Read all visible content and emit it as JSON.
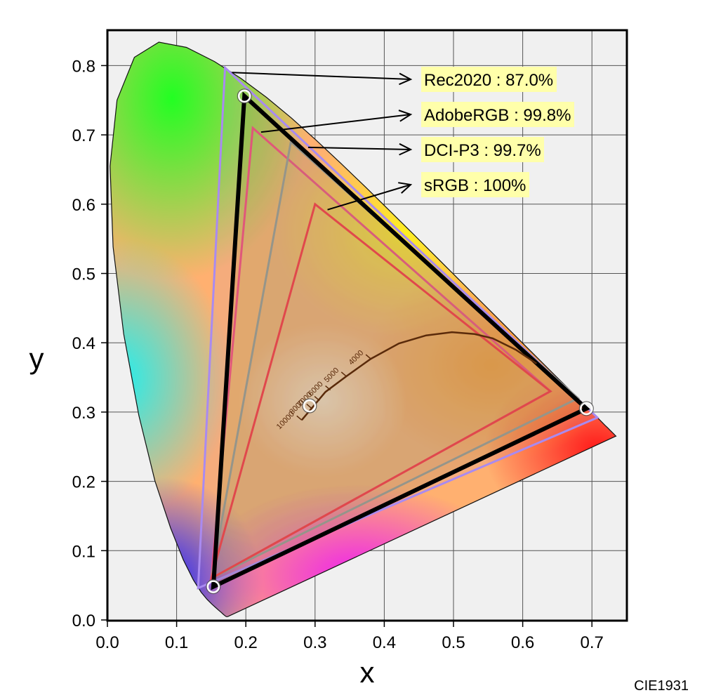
{
  "chart_data": {
    "type": "scatter",
    "title": "",
    "xlabel": "x",
    "ylabel": "y",
    "xlim": [
      0.0,
      0.75
    ],
    "ylim": [
      0.0,
      0.85
    ],
    "xticks": [
      "0.0",
      "0.1",
      "0.2",
      "0.3",
      "0.4",
      "0.5",
      "0.6",
      "0.7"
    ],
    "yticks": [
      "0.0",
      "0.1",
      "0.2",
      "0.3",
      "0.4",
      "0.5",
      "0.6",
      "0.7",
      "0.8"
    ],
    "grid": true,
    "corner_label": "CIE1931",
    "spectral_locus": [
      [
        0.1741,
        0.005
      ],
      [
        0.1738,
        0.0049
      ],
      [
        0.1736,
        0.0049
      ],
      [
        0.1733,
        0.0048
      ],
      [
        0.173,
        0.0048
      ],
      [
        0.1726,
        0.0048
      ],
      [
        0.1721,
        0.0048
      ],
      [
        0.1714,
        0.0051
      ],
      [
        0.1703,
        0.0058
      ],
      [
        0.1689,
        0.0069
      ],
      [
        0.1669,
        0.0086
      ],
      [
        0.1644,
        0.0109
      ],
      [
        0.1611,
        0.0138
      ],
      [
        0.1566,
        0.0177
      ],
      [
        0.151,
        0.0227
      ],
      [
        0.144,
        0.0297
      ],
      [
        0.1355,
        0.0399
      ],
      [
        0.1241,
        0.0578
      ],
      [
        0.1096,
        0.0868
      ],
      [
        0.0913,
        0.1327
      ],
      [
        0.0687,
        0.2007
      ],
      [
        0.0454,
        0.295
      ],
      [
        0.0235,
        0.4127
      ],
      [
        0.0082,
        0.5384
      ],
      [
        0.0039,
        0.6548
      ],
      [
        0.0139,
        0.7502
      ],
      [
        0.0389,
        0.812
      ],
      [
        0.0743,
        0.8338
      ],
      [
        0.1142,
        0.8262
      ],
      [
        0.1547,
        0.8059
      ],
      [
        0.1929,
        0.7816
      ],
      [
        0.2296,
        0.7543
      ],
      [
        0.2658,
        0.7243
      ],
      [
        0.3016,
        0.6923
      ],
      [
        0.3373,
        0.6589
      ],
      [
        0.3731,
        0.6245
      ],
      [
        0.4087,
        0.5896
      ],
      [
        0.4441,
        0.5547
      ],
      [
        0.4788,
        0.5202
      ],
      [
        0.5125,
        0.4866
      ],
      [
        0.5448,
        0.4544
      ],
      [
        0.5752,
        0.4242
      ],
      [
        0.6029,
        0.3965
      ],
      [
        0.627,
        0.3725
      ],
      [
        0.6482,
        0.3514
      ],
      [
        0.6658,
        0.334
      ],
      [
        0.6801,
        0.3197
      ],
      [
        0.6915,
        0.3083
      ],
      [
        0.7006,
        0.2993
      ],
      [
        0.7079,
        0.292
      ],
      [
        0.714,
        0.2859
      ],
      [
        0.719,
        0.2809
      ],
      [
        0.723,
        0.277
      ],
      [
        0.726,
        0.274
      ],
      [
        0.7283,
        0.2717
      ],
      [
        0.73,
        0.27
      ],
      [
        0.7311,
        0.2689
      ],
      [
        0.732,
        0.268
      ],
      [
        0.7327,
        0.2673
      ],
      [
        0.7334,
        0.2666
      ],
      [
        0.734,
        0.266
      ],
      [
        0.7344,
        0.2656
      ],
      [
        0.7347,
        0.2653
      ]
    ],
    "gamuts": [
      {
        "name": "Rec2020",
        "coverage": "87.0%",
        "label": "Rec2020 : 87.0%",
        "color": "#a98af0",
        "width": 3,
        "points": [
          [
            0.708,
            0.292
          ],
          [
            0.17,
            0.797
          ],
          [
            0.131,
            0.046
          ]
        ]
      },
      {
        "name": "AdobeRGB",
        "coverage": "99.8%",
        "label": "AdobeRGB : 99.8%",
        "color": "#ee5588",
        "width": 3,
        "points": [
          [
            0.64,
            0.33
          ],
          [
            0.21,
            0.71
          ],
          [
            0.15,
            0.06
          ]
        ]
      },
      {
        "name": "DCI-P3",
        "coverage": "99.7%",
        "label": "DCI-P3 : 99.7%",
        "color": "#9a9a9a",
        "width": 3,
        "points": [
          [
            0.68,
            0.32
          ],
          [
            0.265,
            0.69
          ],
          [
            0.15,
            0.06
          ]
        ]
      },
      {
        "name": "sRGB",
        "coverage": "100%",
        "label": "sRGB : 100%",
        "color": "#ee4455",
        "width": 3,
        "points": [
          [
            0.64,
            0.33
          ],
          [
            0.3,
            0.6
          ],
          [
            0.15,
            0.06
          ]
        ]
      }
    ],
    "display_gamut": {
      "points": [
        [
          0.692,
          0.305
        ],
        [
          0.198,
          0.756
        ],
        [
          0.153,
          0.048
        ]
      ],
      "color": "#000000",
      "width": 6
    },
    "white_point": [
      0.292,
      0.309
    ],
    "planckian": {
      "points": [
        [
          0.2807,
          0.2884
        ],
        [
          0.295,
          0.3054
        ],
        [
          0.315,
          0.3291
        ],
        [
          0.3451,
          0.3516
        ],
        [
          0.3805,
          0.3768
        ],
        [
          0.4212,
          0.399
        ],
        [
          0.4604,
          0.4106
        ],
        [
          0.4978,
          0.4153
        ],
        [
          0.5304,
          0.4126
        ],
        [
          0.5567,
          0.4064
        ],
        [
          0.59,
          0.39
        ],
        [
          0.62,
          0.37
        ]
      ],
      "ticks": [
        {
          "label": "10000",
          "x": 0.2807,
          "y": 0.2884
        },
        {
          "label": "8000",
          "x": 0.295,
          "y": 0.3054
        },
        {
          "label": "7000",
          "x": 0.3064,
          "y": 0.3166
        },
        {
          "label": "6000",
          "x": 0.3221,
          "y": 0.3318
        },
        {
          "label": "5000",
          "x": 0.3451,
          "y": 0.3516
        },
        {
          "label": "4000",
          "x": 0.3805,
          "y": 0.3768
        }
      ]
    },
    "annotations": [
      {
        "label": "Rec2020 : 87.0%",
        "from": [
          0.18,
          0.79
        ]
      },
      {
        "label": "AdobeRGB : 99.8%",
        "from": [
          0.222,
          0.704
        ]
      },
      {
        "label": "DCI-P3 : 99.7%",
        "from": [
          0.29,
          0.682
        ]
      },
      {
        "label": "sRGB : 100%",
        "from": [
          0.318,
          0.592
        ]
      }
    ]
  }
}
